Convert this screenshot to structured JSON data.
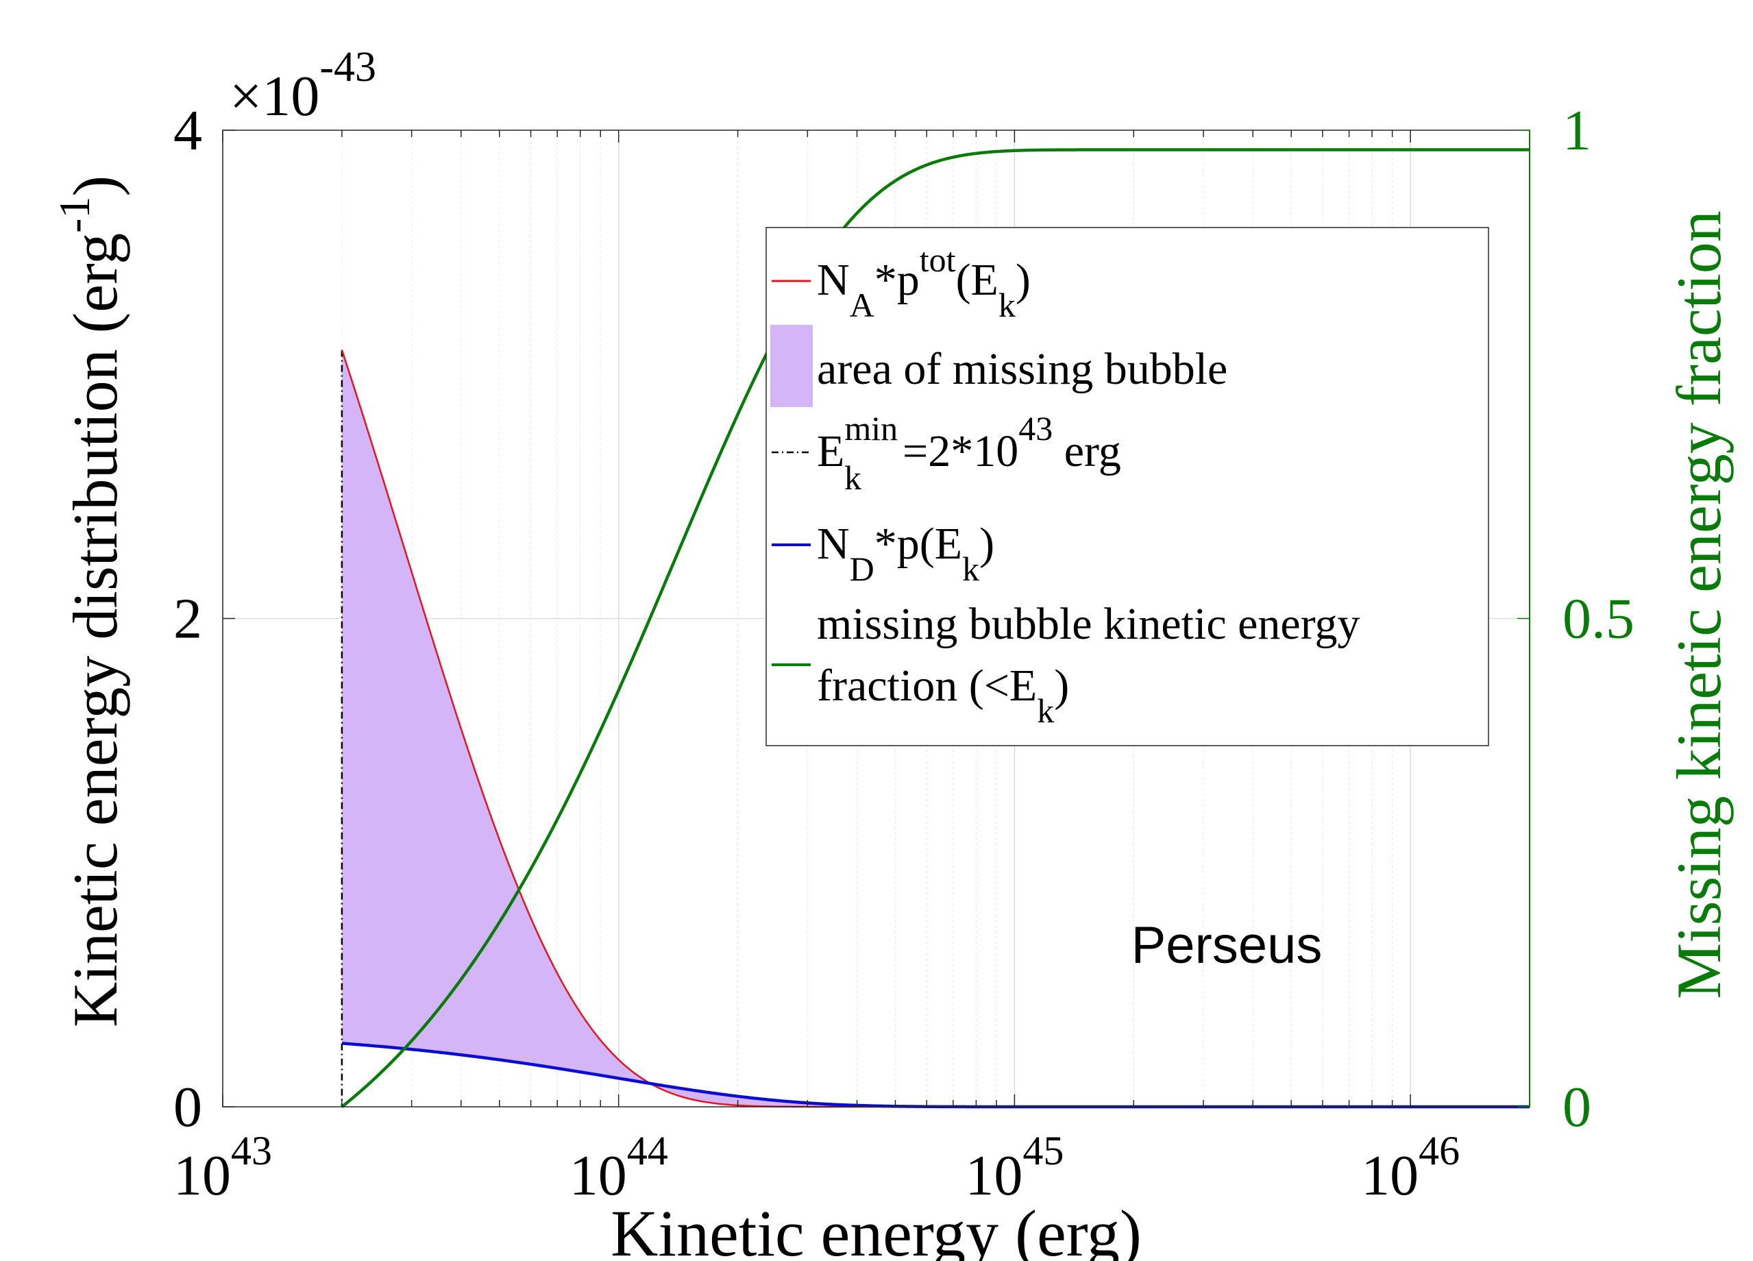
{
  "chart_data": {
    "type": "line",
    "x_scale": "log",
    "xlim": [
      1e+43,
      2e+46
    ],
    "ylim_left": [
      0,
      4e-43
    ],
    "ylim_right": [
      0,
      1
    ],
    "left_axis": {
      "label_main": "Kinetic energy distribution (erg",
      "label_sup": "-1",
      "label_close": ")",
      "multiplier_base": "×10",
      "multiplier_exp": "-43",
      "ticks": [
        {
          "value": 0,
          "label": "0"
        },
        {
          "value": 2,
          "label": "2"
        },
        {
          "value": 4,
          "label": "4"
        }
      ]
    },
    "right_axis": {
      "label": "Missing kinetic energy fraction",
      "color": "#087b08",
      "ticks": [
        {
          "value": 0,
          "label": "0"
        },
        {
          "value": 0.5,
          "label": "0.5"
        },
        {
          "value": 1,
          "label": "1"
        }
      ]
    },
    "x_axis": {
      "label": "Kinetic energy (erg)",
      "ticks": [
        {
          "value": 1e+43,
          "base": "10",
          "exp": "43"
        },
        {
          "value": 1e+44,
          "base": "10",
          "exp": "44"
        },
        {
          "value": 1e+45,
          "base": "10",
          "exp": "45"
        },
        {
          "value": 1e+46,
          "base": "10",
          "exp": "46"
        }
      ]
    },
    "grid": true,
    "annotation": "Perseus",
    "emin": 2e+43,
    "emin_line_top": 3.1e-43,
    "series": [
      {
        "name": "N_A*p^tot(E_k)",
        "axis": "left",
        "color": "#e8141c",
        "kind": "exponential",
        "value_at_emin": 3.1e-43,
        "decay_scale": 2.88e+43
      },
      {
        "name": "N_D*p(E_k)",
        "axis": "left",
        "color": "#0b0bd6",
        "kind": "exponential",
        "value_at_emin": 2.6e-44,
        "decay_scale": 1e+44
      },
      {
        "name": "missing bubble kinetic energy fraction (<E_k)",
        "axis": "right",
        "color": "#087b08",
        "kind": "cumulative",
        "value_at_emin": 0,
        "decay_scale": 1.4e+44,
        "final_value": 0.98
      }
    ],
    "fill": {
      "name": "area of missing bubble",
      "color": "#d4b6f8",
      "between": [
        "N_D*p(E_k)",
        "N_A*p^tot(E_k)"
      ]
    },
    "legend": {
      "position": "upper-right",
      "items": [
        {
          "kind": "line",
          "color": "#e8141c",
          "dash": "",
          "parts": [
            "N",
            "A",
            "*p",
            "tot",
            "(E",
            "k",
            ")"
          ]
        },
        {
          "kind": "patch",
          "color": "#d4b6f8",
          "text": "area of missing bubble"
        },
        {
          "kind": "line",
          "color": "#000000",
          "dash": "10,5,2,5",
          "parts": [
            "E",
            "min",
            "k",
            "=2*10",
            "43",
            " erg"
          ]
        },
        {
          "kind": "line",
          "color": "#0b0bd6",
          "dash": "",
          "parts": [
            "N",
            "D",
            "*p(E",
            "k",
            ")"
          ]
        },
        {
          "kind": "line",
          "color": "#087b08",
          "dash": "",
          "line1": "missing bubble kinetic energy",
          "line2_parts": [
            "fraction (<E",
            "k",
            ")"
          ]
        }
      ]
    }
  }
}
